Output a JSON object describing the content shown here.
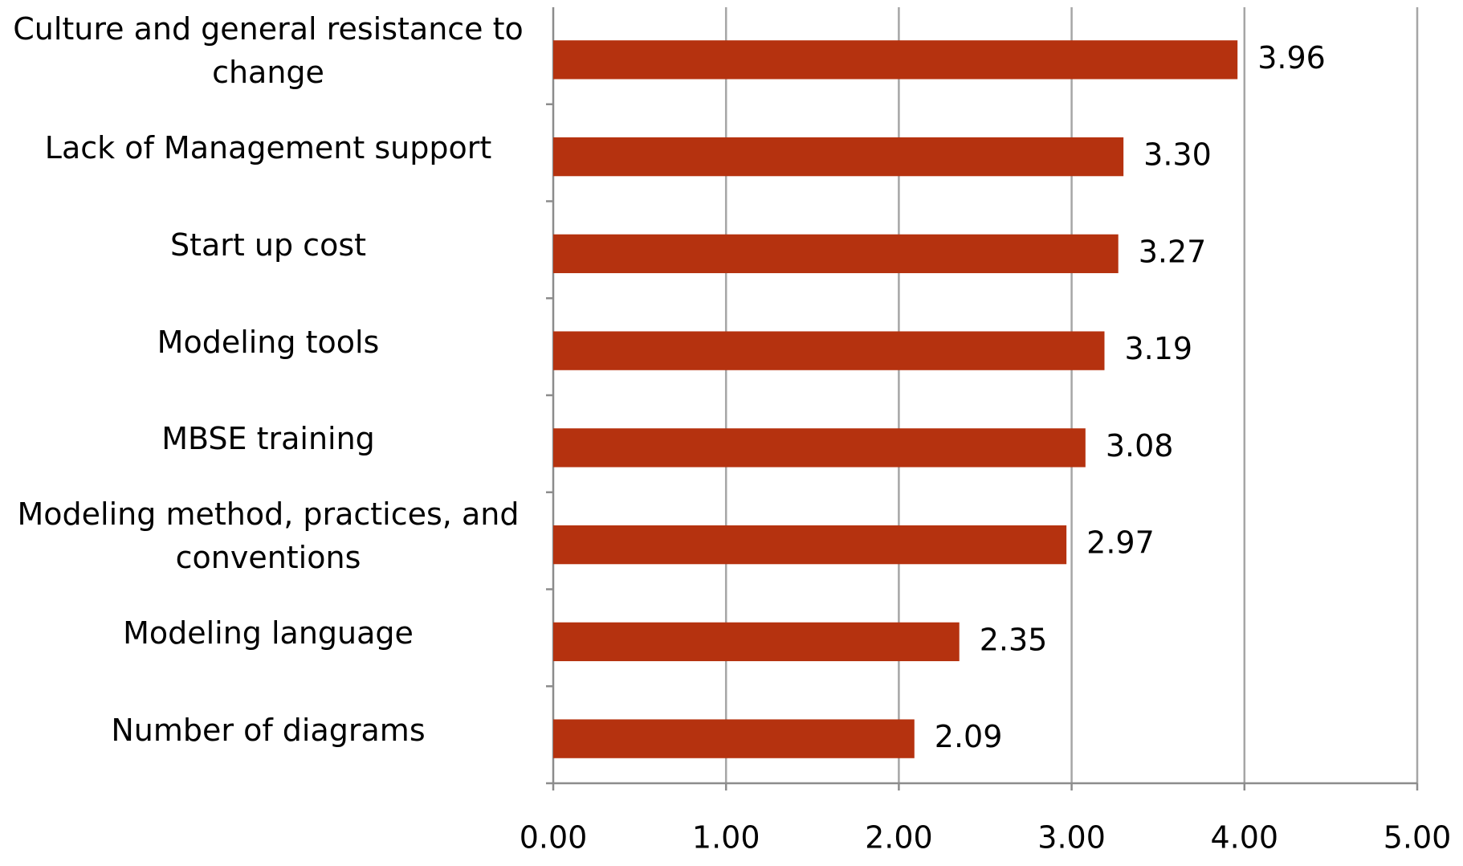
{
  "chart_data": {
    "type": "barh",
    "categories": [
      "Culture and general resistance to change",
      "Lack of Management support",
      "Start up cost",
      "Modeling tools",
      "MBSE training",
      "Modeling method, practices, and conventions",
      "Modeling language",
      "Number of diagrams"
    ],
    "values": [
      3.96,
      3.3,
      3.27,
      3.19,
      3.08,
      2.97,
      2.35,
      2.09
    ],
    "value_labels": [
      "3.96",
      "3.30",
      "3.27",
      "3.19",
      "3.08",
      "2.97",
      "2.35",
      "2.09"
    ],
    "color": "#b5320f",
    "xlim": [
      0,
      5
    ],
    "xticks": [
      {
        "value": 0,
        "label": "0.00"
      },
      {
        "value": 1,
        "label": "1.00"
      },
      {
        "value": 2,
        "label": "2.00"
      },
      {
        "value": 3,
        "label": "3.00"
      },
      {
        "value": 4,
        "label": "4.00"
      },
      {
        "value": 5,
        "label": "5.00"
      }
    ],
    "grid": true
  }
}
